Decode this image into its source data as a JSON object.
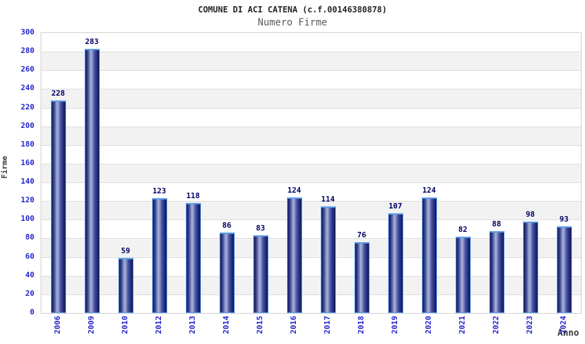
{
  "chart_data": {
    "type": "bar",
    "title": "COMUNE DI ACI CATENA (c.f.00146380878)",
    "subtitle": "Numero Firme",
    "xlabel": "Anno",
    "ylabel": "Firme",
    "categories": [
      "2006",
      "2009",
      "2010",
      "2012",
      "2013",
      "2014",
      "2015",
      "2016",
      "2017",
      "2018",
      "2019",
      "2020",
      "2021",
      "2022",
      "2023",
      "2024"
    ],
    "values": [
      228,
      283,
      59,
      123,
      118,
      86,
      83,
      124,
      114,
      76,
      107,
      124,
      82,
      88,
      98,
      93
    ],
    "ylim": [
      0,
      300
    ],
    "ytick_step": 20,
    "legend": "none",
    "grid": "horizontal-bands-alternating",
    "colors": {
      "axis_text": "#2424cf",
      "value_label": "#000066",
      "title_text": "#262626",
      "subtitle_text": "#5a5a5a",
      "axis_label_text": "#3a3a3a",
      "band_light": "#ffffff",
      "band_dark": "#f2f2f2",
      "gridline": "#dcdcdc",
      "plot_border": "#d0d0d0",
      "bar_dark": "#141c63",
      "bar_mid": "#4a56a0",
      "bar_highlight": "#aab3dc",
      "bar_border": "#5b9ce8"
    }
  }
}
